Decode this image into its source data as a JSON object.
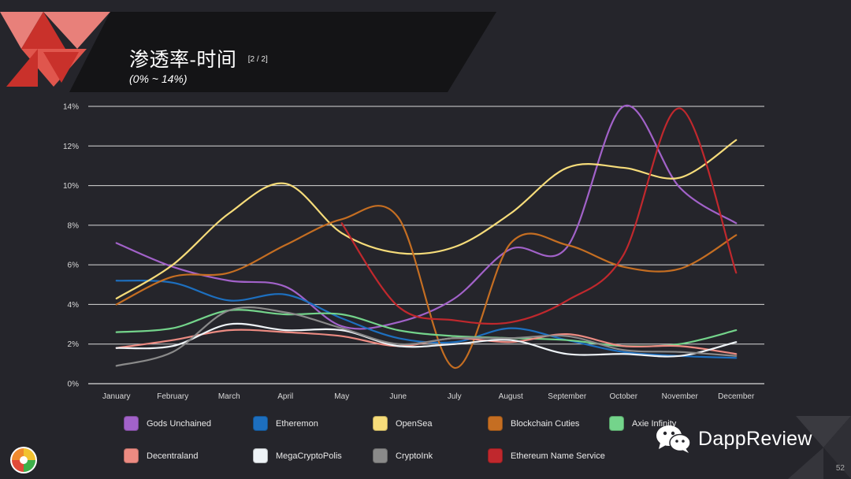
{
  "header": {
    "title": "渗透率-时间",
    "page_indicator": "[2 / 2]",
    "subtitle": "(0% ~ 14%)"
  },
  "brand": {
    "name": "DappReview",
    "icon": "wechat-icon"
  },
  "page_number": "52",
  "colors": {
    "background": "#25252b",
    "banner": "#141416",
    "triangle_primary": "#c9312b",
    "triangle_light": "#e8807a",
    "triangle_mid": "#d9534a",
    "grid": "#d9d9d9"
  },
  "chart_data": {
    "type": "line",
    "title": "",
    "xlabel": "",
    "ylabel": "",
    "categories": [
      "January",
      "February",
      "March",
      "April",
      "May",
      "June",
      "July",
      "August",
      "September",
      "October",
      "November",
      "December"
    ],
    "ylim": [
      0,
      14
    ],
    "yticks": [
      0,
      2,
      4,
      6,
      8,
      10,
      12,
      14
    ],
    "ytick_labels": [
      "0%",
      "2%",
      "4%",
      "6%",
      "8%",
      "10%",
      "12%",
      "14%"
    ],
    "grid": true,
    "legend_position": "bottom",
    "series": [
      {
        "name": "Gods Unchained",
        "color": "#a262c9",
        "values": [
          7.1,
          5.9,
          5.2,
          4.9,
          2.9,
          3.1,
          4.3,
          6.8,
          6.9,
          14.0,
          9.9,
          8.1
        ]
      },
      {
        "name": "Etheremon",
        "color": "#1d6fbf",
        "values": [
          5.2,
          5.1,
          4.2,
          4.5,
          3.3,
          2.3,
          2.1,
          2.8,
          2.2,
          1.6,
          1.4,
          1.3
        ]
      },
      {
        "name": "OpenSea",
        "color": "#f6dc7a",
        "values": [
          4.3,
          6.0,
          8.6,
          10.1,
          7.6,
          6.6,
          6.9,
          8.6,
          10.9,
          10.9,
          10.4,
          12.3
        ]
      },
      {
        "name": "Blockchain Cuties",
        "color": "#c56e22",
        "values": [
          4.0,
          5.4,
          5.6,
          7.0,
          8.3,
          8.4,
          0.8,
          7.1,
          7.0,
          5.9,
          5.8,
          7.5
        ]
      },
      {
        "name": "Axie Infinity",
        "color": "#74d48b",
        "values": [
          2.6,
          2.8,
          3.7,
          3.5,
          3.5,
          2.7,
          2.4,
          2.3,
          2.2,
          1.9,
          2.0,
          2.7
        ]
      },
      {
        "name": "Decentraland",
        "color": "#ec8b82",
        "values": [
          1.8,
          2.2,
          2.7,
          2.6,
          2.4,
          1.9,
          2.3,
          2.1,
          2.5,
          1.9,
          1.9,
          1.5
        ]
      },
      {
        "name": "MegaCryptoPolis",
        "color": "#eef3f7",
        "values": [
          1.8,
          1.9,
          3.0,
          2.7,
          2.7,
          1.9,
          2.0,
          2.2,
          1.5,
          1.5,
          1.4,
          2.1
        ]
      },
      {
        "name": "CryptoInk",
        "color": "#8a8a8a",
        "values": [
          0.9,
          1.6,
          3.7,
          3.6,
          2.8,
          2.0,
          2.3,
          2.3,
          2.4,
          1.7,
          1.6,
          1.4
        ]
      },
      {
        "name": "Ethereum Name Service",
        "color": "#c0282d",
        "values": [
          null,
          null,
          null,
          null,
          8.1,
          3.9,
          3.2,
          3.1,
          4.2,
          6.5,
          13.9,
          5.6
        ]
      }
    ]
  },
  "legend": {
    "items": [
      {
        "label": "Gods Unchained",
        "color": "#a262c9"
      },
      {
        "label": "Etheremon",
        "color": "#1d6fbf"
      },
      {
        "label": "OpenSea",
        "color": "#f6dc7a"
      },
      {
        "label": "Blockchain Cuties",
        "color": "#c56e22"
      },
      {
        "label": "Axie Infinity",
        "color": "#74d48b"
      },
      {
        "label": "Decentraland",
        "color": "#ec8b82"
      },
      {
        "label": "MegaCryptoPolis",
        "color": "#eef3f7"
      },
      {
        "label": "CryptoInk",
        "color": "#8a8a8a"
      },
      {
        "label": "Ethereum Name Service",
        "color": "#c0282d"
      }
    ]
  }
}
